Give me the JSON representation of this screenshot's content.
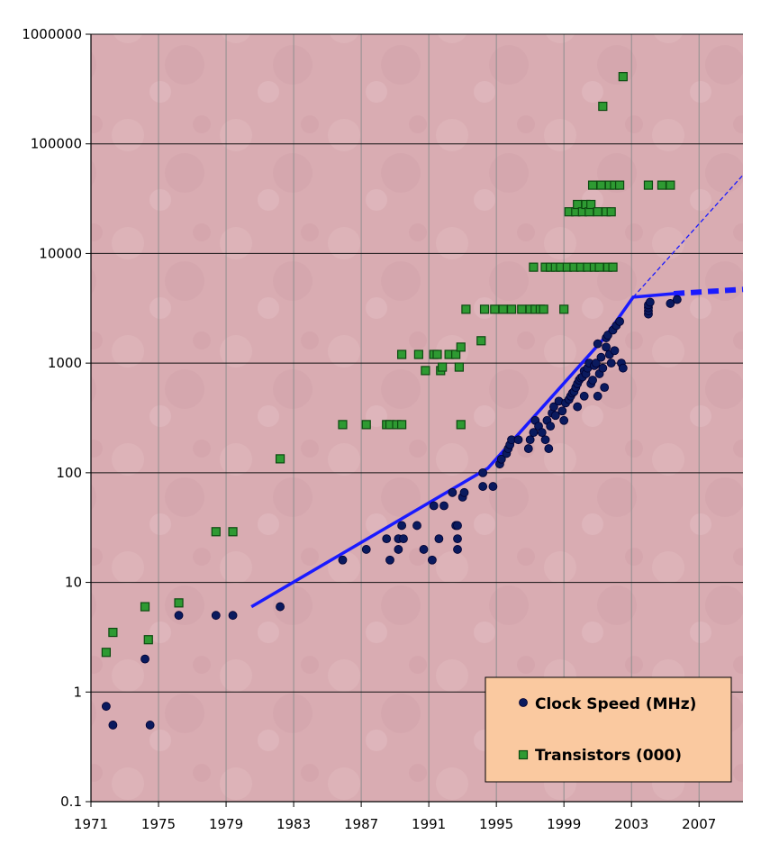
{
  "chart_data": {
    "type": "scatter",
    "title": "",
    "xlabel": "",
    "ylabel": "",
    "x_scale": "linear",
    "y_scale": "log",
    "xlim": [
      1971,
      2009.6
    ],
    "ylim": [
      0.1,
      1000000
    ],
    "x_ticks": [
      1971,
      1975,
      1979,
      1983,
      1987,
      1991,
      1995,
      1999,
      2003,
      2007
    ],
    "y_ticks": [
      0.1,
      1,
      10,
      100,
      1000,
      10000,
      100000,
      1000000
    ],
    "x_tick_labels": [
      "1971",
      "1975",
      "1979",
      "1983",
      "1987",
      "1991",
      "1995",
      "1999",
      "2003",
      "2007"
    ],
    "y_tick_labels": [
      "0.1",
      "1",
      "10",
      "100",
      "1000",
      "10000",
      "100000",
      "1000000"
    ],
    "grid": true,
    "background_color": "#d8aab0",
    "legend": {
      "placement": "bottom-right",
      "background": "#fac9a0"
    },
    "series": [
      {
        "name": "Clock Speed (MHz)",
        "marker": "circle",
        "color": "#0a1a5e",
        "points": [
          [
            1971.9,
            0.74
          ],
          [
            1972.3,
            0.5
          ],
          [
            1974.2,
            2
          ],
          [
            1974.5,
            0.5
          ],
          [
            1976.2,
            5
          ],
          [
            1978.4,
            5
          ],
          [
            1979.4,
            5
          ],
          [
            1982.2,
            6
          ],
          [
            1985.9,
            16
          ],
          [
            1987.3,
            20
          ],
          [
            1988.5,
            25
          ],
          [
            1988.7,
            16
          ],
          [
            1989.2,
            25
          ],
          [
            1989.2,
            20
          ],
          [
            1989.4,
            33
          ],
          [
            1989.5,
            25
          ],
          [
            1990.3,
            33
          ],
          [
            1990.7,
            20
          ],
          [
            1991.2,
            16
          ],
          [
            1991.3,
            50
          ],
          [
            1991.6,
            25
          ],
          [
            1991.9,
            50
          ],
          [
            1992.4,
            66
          ],
          [
            1992.6,
            33
          ],
          [
            1992.7,
            25
          ],
          [
            1992.7,
            20
          ],
          [
            1992.7,
            33
          ],
          [
            1993.0,
            60
          ],
          [
            1993.1,
            66
          ],
          [
            1994.2,
            100
          ],
          [
            1994.2,
            75
          ],
          [
            1994.8,
            75
          ],
          [
            1995.2,
            120
          ],
          [
            1995.3,
            133
          ],
          [
            1995.6,
            150
          ],
          [
            1995.7,
            166
          ],
          [
            1995.8,
            180
          ],
          [
            1995.9,
            200
          ],
          [
            1996.3,
            200
          ],
          [
            1996.9,
            166
          ],
          [
            1997.0,
            200
          ],
          [
            1997.2,
            233
          ],
          [
            1997.3,
            300
          ],
          [
            1997.5,
            266
          ],
          [
            1997.7,
            233
          ],
          [
            1997.9,
            200
          ],
          [
            1998.0,
            300
          ],
          [
            1998.1,
            166
          ],
          [
            1998.2,
            266
          ],
          [
            1998.3,
            350
          ],
          [
            1998.4,
            400
          ],
          [
            1998.5,
            333
          ],
          [
            1998.7,
            450
          ],
          [
            1998.9,
            366
          ],
          [
            1999.0,
            300
          ],
          [
            1999.1,
            433
          ],
          [
            1999.3,
            466
          ],
          [
            1999.4,
            500
          ],
          [
            1999.5,
            533
          ],
          [
            1999.6,
            550
          ],
          [
            1999.7,
            600
          ],
          [
            1999.8,
            400
          ],
          [
            1999.8,
            650
          ],
          [
            1999.9,
            700
          ],
          [
            2000.0,
            733
          ],
          [
            2000.1,
            750
          ],
          [
            2000.2,
            500
          ],
          [
            2000.2,
            850
          ],
          [
            2000.3,
            800
          ],
          [
            2000.4,
            900
          ],
          [
            2000.5,
            1000
          ],
          [
            2000.6,
            650
          ],
          [
            2000.7,
            700
          ],
          [
            2000.8,
            950
          ],
          [
            2000.9,
            1000
          ],
          [
            2001.0,
            1500
          ],
          [
            2001.0,
            500
          ],
          [
            2001.1,
            800
          ],
          [
            2001.2,
            1130
          ],
          [
            2001.3,
            900
          ],
          [
            2001.4,
            600
          ],
          [
            2001.5,
            1400
          ],
          [
            2001.5,
            1700
          ],
          [
            2001.6,
            1800
          ],
          [
            2001.7,
            1200
          ],
          [
            2001.8,
            1000
          ],
          [
            2001.9,
            2000
          ],
          [
            2002.0,
            1300
          ],
          [
            2002.1,
            2200
          ],
          [
            2002.3,
            2400
          ],
          [
            2002.4,
            1000
          ],
          [
            2002.5,
            900
          ],
          [
            2004.0,
            2800
          ],
          [
            2004.0,
            3000
          ],
          [
            2004.0,
            3200
          ],
          [
            2004.0,
            3400
          ],
          [
            2004.1,
            3600
          ],
          [
            2005.3,
            3500
          ],
          [
            2005.7,
            3800
          ]
        ]
      },
      {
        "name": "Transistors (000)",
        "marker": "square",
        "color": "#2e9a32",
        "points": [
          [
            1971.9,
            2.3
          ],
          [
            1972.3,
            3.5
          ],
          [
            1974.2,
            6
          ],
          [
            1974.4,
            3
          ],
          [
            1976.2,
            6.5
          ],
          [
            1978.4,
            29
          ],
          [
            1979.4,
            29
          ],
          [
            1982.2,
            134
          ],
          [
            1985.9,
            275
          ],
          [
            1987.3,
            275
          ],
          [
            1988.5,
            275
          ],
          [
            1988.7,
            275
          ],
          [
            1989.1,
            275
          ],
          [
            1989.4,
            275
          ],
          [
            1989.4,
            1200
          ],
          [
            1990.4,
            1200
          ],
          [
            1990.8,
            855
          ],
          [
            1991.3,
            1200
          ],
          [
            1991.5,
            1200
          ],
          [
            1991.7,
            855
          ],
          [
            1991.8,
            920
          ],
          [
            1992.2,
            1200
          ],
          [
            1992.6,
            1200
          ],
          [
            1992.8,
            920
          ],
          [
            1992.9,
            1400
          ],
          [
            1992.9,
            275
          ],
          [
            1993.2,
            3100
          ],
          [
            1994.1,
            1600
          ],
          [
            1994.3,
            3100
          ],
          [
            1994.9,
            3100
          ],
          [
            1995.4,
            3100
          ],
          [
            1995.9,
            3100
          ],
          [
            1996.5,
            3100
          ],
          [
            1997.0,
            3100
          ],
          [
            1997.2,
            7500
          ],
          [
            1997.3,
            3100
          ],
          [
            1997.6,
            3100
          ],
          [
            1997.8,
            3100
          ],
          [
            1997.9,
            7500
          ],
          [
            1998.2,
            7500
          ],
          [
            1998.5,
            7500
          ],
          [
            1998.8,
            7500
          ],
          [
            1999.0,
            3100
          ],
          [
            1999.2,
            7500
          ],
          [
            1999.3,
            24000
          ],
          [
            1999.6,
            7500
          ],
          [
            1999.7,
            24000
          ],
          [
            1999.8,
            28000
          ],
          [
            2000.0,
            7500
          ],
          [
            2000.1,
            24000
          ],
          [
            2000.3,
            28000
          ],
          [
            2000.4,
            7500
          ],
          [
            2000.5,
            24000
          ],
          [
            2000.6,
            28000
          ],
          [
            2000.7,
            42000
          ],
          [
            2000.8,
            7500
          ],
          [
            2001.0,
            24000
          ],
          [
            2001.1,
            7500
          ],
          [
            2001.2,
            42000
          ],
          [
            2001.3,
            220000
          ],
          [
            2001.5,
            24000
          ],
          [
            2001.6,
            7500
          ],
          [
            2001.7,
            42000
          ],
          [
            2001.8,
            24000
          ],
          [
            2001.9,
            7500
          ],
          [
            2002.0,
            42000
          ],
          [
            2002.3,
            42000
          ],
          [
            2002.5,
            410000
          ],
          [
            2004.0,
            42000
          ],
          [
            2004.8,
            42000
          ],
          [
            2005.3,
            42000
          ]
        ]
      }
    ],
    "trend_lines": [
      {
        "style": "solid",
        "color": "#1a1aff",
        "points": [
          [
            1980.5,
            6
          ],
          [
            1994.5,
            110
          ],
          [
            2001.4,
            1700
          ],
          [
            2003.1,
            4000
          ],
          [
            2005.5,
            4300
          ]
        ]
      },
      {
        "style": "dashed-thick",
        "color": "#1a1aff",
        "points": [
          [
            2005.5,
            4300
          ],
          [
            2009.6,
            4700
          ]
        ]
      },
      {
        "style": "dashed-thin",
        "color": "#1a1aff",
        "points": [
          [
            2003.1,
            4000
          ],
          [
            2009.6,
            52000
          ]
        ]
      }
    ]
  }
}
